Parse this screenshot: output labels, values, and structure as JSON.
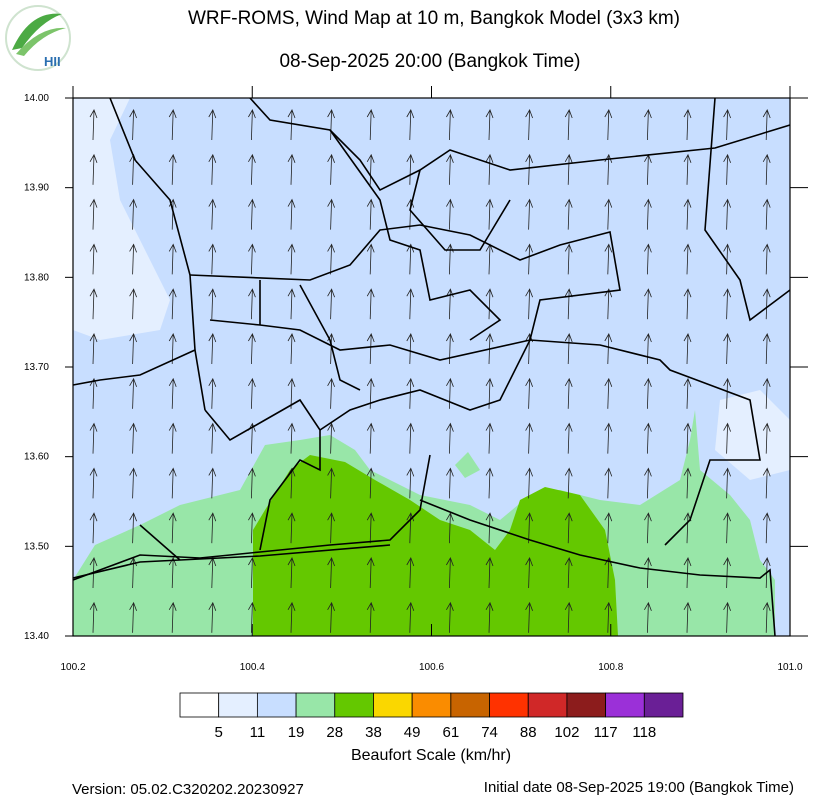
{
  "header": {
    "title": "WRF-ROMS, Wind Map at 10 m, Bangkok Model (3x3 km)",
    "subtitle": "08-Sep-2025 20:00 (Bangkok Time)",
    "logo": "HII"
  },
  "map": {
    "xlim": [
      100.2,
      101.0
    ],
    "ylim": [
      13.4,
      14.0
    ],
    "xticks": [
      {
        "value": 100.2,
        "label": "100.2"
      },
      {
        "value": 100.4,
        "label": "100.4"
      },
      {
        "value": 100.6,
        "label": "100.6"
      },
      {
        "value": 100.8,
        "label": "100.8"
      },
      {
        "value": 101.0,
        "label": "101.0"
      }
    ],
    "yticks": [
      {
        "value": 13.4,
        "label": "13.40"
      },
      {
        "value": 13.5,
        "label": "13.50"
      },
      {
        "value": 13.6,
        "label": "13.60"
      },
      {
        "value": 13.7,
        "label": "13.70"
      },
      {
        "value": 13.8,
        "label": "13.80"
      },
      {
        "value": 13.9,
        "label": "13.90"
      },
      {
        "value": 14.0,
        "label": "14.00"
      }
    ]
  },
  "colorbar": {
    "colors": [
      "#ffffff",
      "#e4efff",
      "#c8deff",
      "#98e6a8",
      "#64c800",
      "#fad700",
      "#fa8c00",
      "#c86400",
      "#ff3200",
      "#d02828",
      "#8c1c1c",
      "#9b30d8",
      "#6a1f96"
    ],
    "labels": [
      5,
      11,
      19,
      28,
      38,
      49,
      61,
      74,
      88,
      102,
      117,
      118
    ],
    "title": "Beaufort Scale (km/hr)"
  },
  "footer": {
    "version": "Version: 05.02.C320202.20230927",
    "initial_date": "Initial date 08-Sep-2025 19:00 (Bangkok Time)"
  }
}
